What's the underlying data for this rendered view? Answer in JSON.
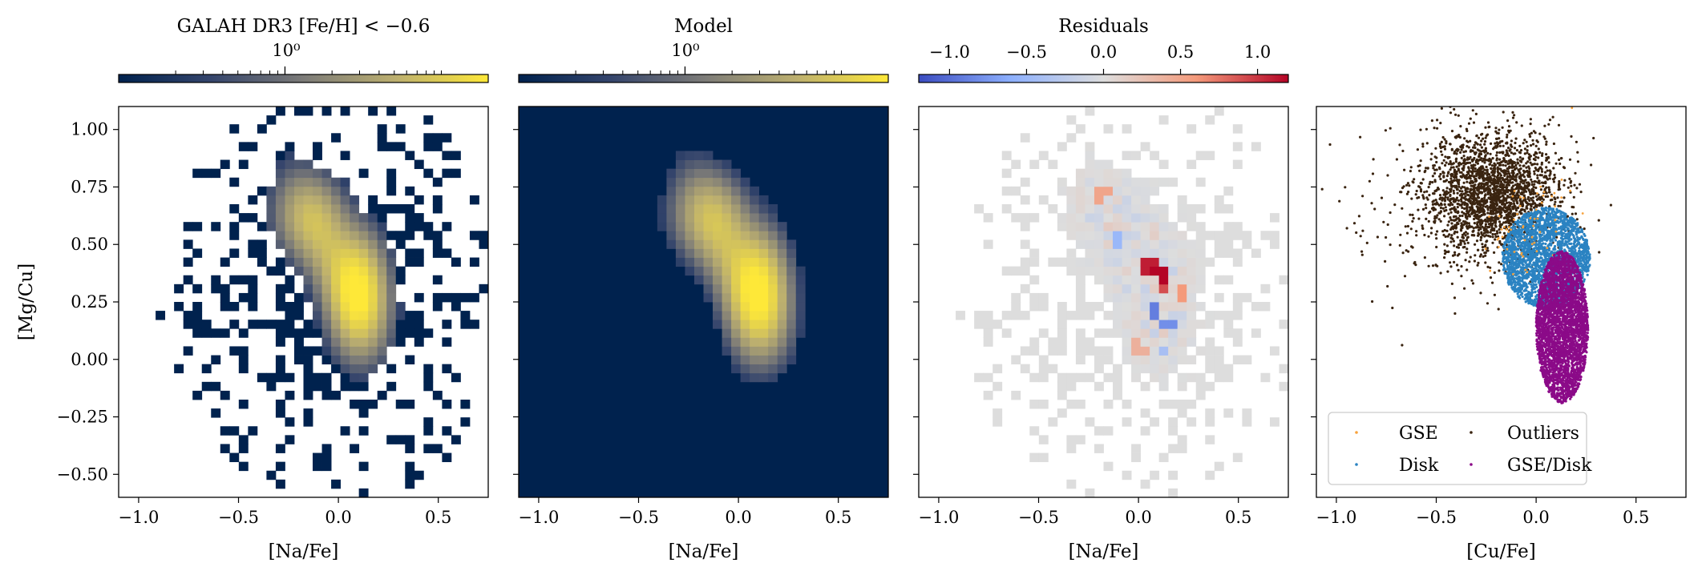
{
  "chart_data": [
    {
      "type": "heatmap",
      "title": "GALAH DR3 [Fe/H] < −0.6",
      "xlabel": "[Na/Fe]",
      "ylabel": "[Mg/Cu]",
      "xlim": [
        -1.1,
        0.75
      ],
      "ylim": [
        -0.6,
        1.1
      ],
      "xticks": [
        "−1.0",
        "−0.5",
        "0.0",
        "0.5"
      ],
      "yticks": [
        "−0.50",
        "−0.25",
        "0.00",
        "0.25",
        "0.50",
        "0.75",
        "1.00"
      ],
      "colorbar": {
        "scale": "log",
        "label": "10⁰",
        "colormap": "cividis"
      }
    },
    {
      "type": "heatmap",
      "title": "Model",
      "xlabel": "[Na/Fe]",
      "xlim": [
        -1.1,
        0.75
      ],
      "ylim": [
        -0.6,
        1.1
      ],
      "xticks": [
        "−1.0",
        "−0.5",
        "0.0",
        "0.5"
      ],
      "colorbar": {
        "scale": "log",
        "label": "10⁰",
        "colormap": "cividis"
      }
    },
    {
      "type": "heatmap",
      "title": "Residuals",
      "xlabel": "[Na/Fe]",
      "xlim": [
        -1.1,
        0.75
      ],
      "ylim": [
        -0.6,
        1.1
      ],
      "xticks": [
        "−1.0",
        "−0.5",
        "0.0",
        "0.5"
      ],
      "colorbar": {
        "scale": "linear",
        "range": [
          -1.2,
          1.2
        ],
        "ticks": [
          "−1.0",
          "−0.5",
          "0.0",
          "0.5",
          "1.0"
        ],
        "colormap": "coolwarm"
      },
      "hotspots": [
        {
          "x": 0.05,
          "y": 0.41,
          "value": 1.1
        },
        {
          "x": 0.11,
          "y": 0.37,
          "value": 1.2
        },
        {
          "x": 0.13,
          "y": 0.31,
          "value": 0.9
        },
        {
          "x": 0.08,
          "y": 0.2,
          "value": -0.9
        },
        {
          "x": 0.15,
          "y": 0.15,
          "value": -0.8
        },
        {
          "x": 0.22,
          "y": 0.3,
          "value": 0.6
        },
        {
          "x": -0.18,
          "y": 0.72,
          "value": 0.5
        },
        {
          "x": -0.1,
          "y": 0.52,
          "value": -0.5
        },
        {
          "x": 0.0,
          "y": 0.05,
          "value": 0.4
        },
        {
          "x": 0.12,
          "y": 0.04,
          "value": -0.4
        }
      ]
    },
    {
      "type": "scatter",
      "xlabel": "[Cu/Fe]",
      "xlim": [
        -1.1,
        0.75
      ],
      "ylim": [
        -0.6,
        1.1
      ],
      "xticks": [
        "−1.0",
        "−0.5",
        "0.0",
        "0.5"
      ],
      "legend": {
        "placement": "lower-right",
        "ncol": 2
      },
      "series": [
        {
          "name": "GSE",
          "color": "#f7a23c"
        },
        {
          "name": "Outliers",
          "color": "#3a2410"
        },
        {
          "name": "Disk",
          "color": "#2b83c2"
        },
        {
          "name": "GSE/Disk",
          "color": "#8b0a88"
        }
      ]
    }
  ]
}
